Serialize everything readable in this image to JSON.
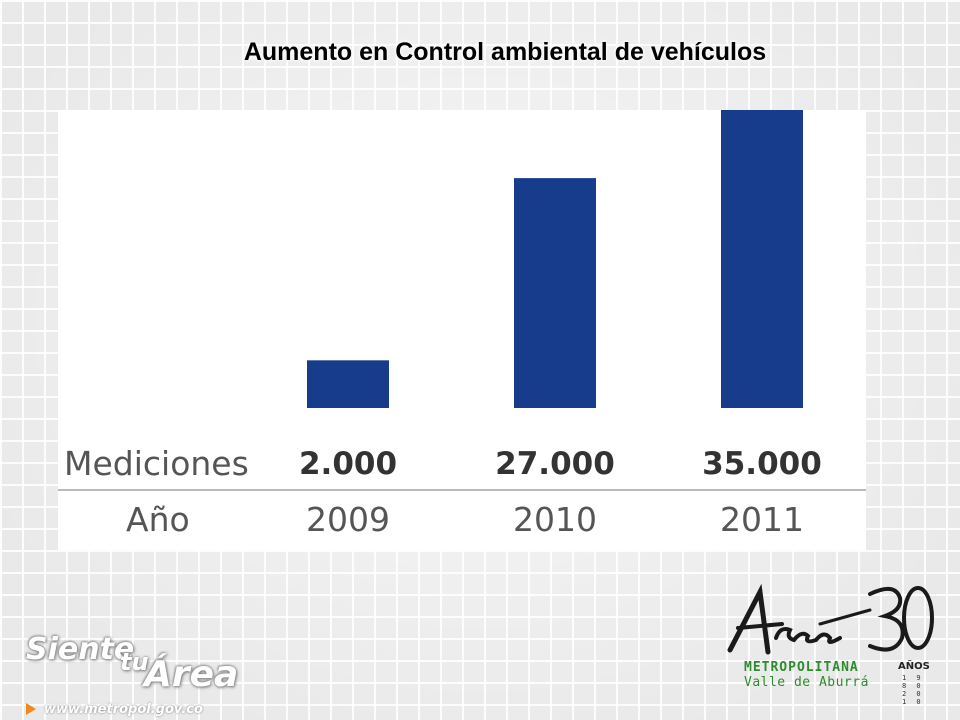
{
  "slide": {
    "title": "Aumento en Control ambiental de vehículos"
  },
  "chart_data": {
    "type": "bar",
    "categories": [
      "2009",
      "2010",
      "2011"
    ],
    "values": [
      2000,
      27000,
      35000
    ],
    "value_labels": [
      "2.000",
      "27.000",
      "35.000"
    ],
    "row_labels": {
      "values": "Mediciones",
      "categories": "Año"
    },
    "title": "Aumento en Control ambiental de vehículos",
    "ylim": [
      0,
      35000
    ],
    "bar_color": "#173c8c",
    "grid": false,
    "legend": "none"
  },
  "branding": {
    "slogan_siente": "Siente",
    "slogan_tu": "tu",
    "slogan_area": "Área",
    "url": "www.metropol.gov.co",
    "logo_metropolitana": "METROPOLITANA",
    "logo_valle": "Valle de Aburrá",
    "logo_anos": "AÑOS",
    "logo_years": "1 9 8 0 2 0 1 0",
    "logo_color": "#2e8b2e",
    "accent_orange": "#f08a1c"
  }
}
